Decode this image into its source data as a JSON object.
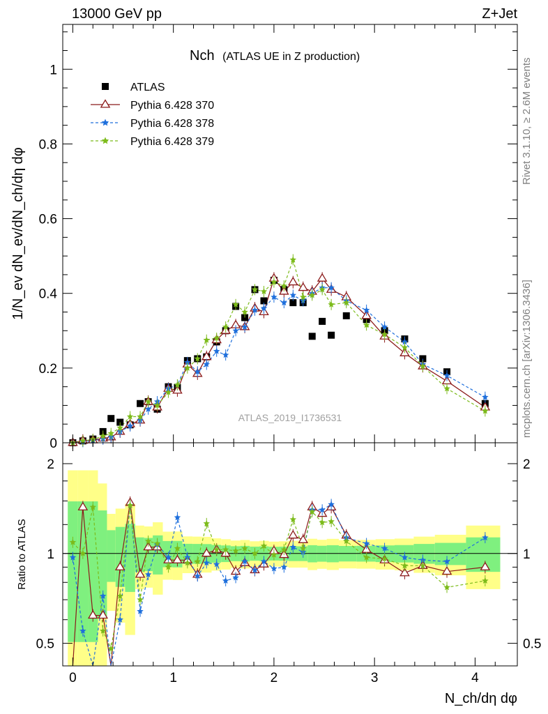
{
  "header": {
    "left": "13000 GeV pp",
    "right": "Z+Jet"
  },
  "main_title": {
    "text": "Nch",
    "sub": "(ATLAS UE in Z production)"
  },
  "watermarks": {
    "analysis": "ATLAS_2019_I1736531",
    "rivet": "Rivet 3.1.10, ≥ 2.6M events",
    "mcplots": "mcplots.cern.ch [arXiv:1306.3436]"
  },
  "labels": {
    "ylabel_main": "1/N_ev dN_ev/dN_ch/dη dφ",
    "ylabel_ratio": "Ratio to ATLAS",
    "xlabel": "N_ch/dη dφ"
  },
  "legend": [
    {
      "label": "ATLAS",
      "color": "#000000",
      "style": "square"
    },
    {
      "label": "Pythia 6.428 370",
      "color": "#8b1a1a",
      "style": "triangle-solid"
    },
    {
      "label": "Pythia 6.428 378",
      "color": "#1e6fdc",
      "style": "star-dashed"
    },
    {
      "label": "Pythia 6.428 379",
      "color": "#7cbb1a",
      "style": "star-dashed"
    }
  ],
  "chart_data": [
    {
      "type": "scatter",
      "panel": "main",
      "xlim": [
        -0.1,
        4.42
      ],
      "ylim": [
        0,
        1.12
      ],
      "xticks": [
        0,
        1,
        2,
        3,
        4
      ],
      "yticks": [
        0,
        0.2,
        0.4,
        0.6,
        0.8,
        1
      ],
      "ytick_labels": [
        "0",
        "0.2",
        "0.4",
        "0.6",
        "0.8",
        "1"
      ],
      "legend_position": "top-left",
      "series": [
        {
          "name": "ATLAS",
          "color": "#000000",
          "points": [
            [
              0,
              0
            ],
            [
              0.1,
              0.005
            ],
            [
              0.2,
              0.01
            ],
            [
              0.3,
              0.03
            ],
            [
              0.38,
              0.065
            ],
            [
              0.47,
              0.055
            ],
            [
              0.57,
              0.048
            ],
            [
              0.67,
              0.105
            ],
            [
              0.75,
              0.11
            ],
            [
              0.84,
              0.09
            ],
            [
              0.95,
              0.15
            ],
            [
              1.04,
              0.148
            ],
            [
              1.14,
              0.22
            ],
            [
              1.24,
              0.225
            ],
            [
              1.33,
              0.23
            ],
            [
              1.43,
              0.27
            ],
            [
              1.52,
              0.3
            ],
            [
              1.62,
              0.365
            ],
            [
              1.71,
              0.335
            ],
            [
              1.81,
              0.41
            ],
            [
              1.9,
              0.38
            ],
            [
              2.0,
              0.435
            ],
            [
              2.1,
              0.41
            ],
            [
              2.19,
              0.375
            ],
            [
              2.29,
              0.375
            ],
            [
              2.38,
              0.285
            ],
            [
              2.48,
              0.325
            ],
            [
              2.57,
              0.288
            ],
            [
              2.72,
              0.34
            ],
            [
              2.92,
              0.33
            ],
            [
              3.1,
              0.3
            ],
            [
              3.3,
              0.278
            ],
            [
              3.48,
              0.225
            ],
            [
              3.72,
              0.19
            ],
            [
              4.1,
              0.105
            ]
          ]
        },
        {
          "name": "Pythia 6.428 370",
          "color": "#8b1a1a",
          "points": [
            [
              0,
              0
            ],
            [
              0.1,
              0.006
            ],
            [
              0.2,
              0.007
            ],
            [
              0.3,
              0.012
            ],
            [
              0.38,
              0.015
            ],
            [
              0.47,
              0.03
            ],
            [
              0.57,
              0.05
            ],
            [
              0.67,
              0.06
            ],
            [
              0.75,
              0.11
            ],
            [
              0.84,
              0.095
            ],
            [
              0.95,
              0.145
            ],
            [
              1.04,
              0.14
            ],
            [
              1.14,
              0.21
            ],
            [
              1.24,
              0.185
            ],
            [
              1.33,
              0.23
            ],
            [
              1.43,
              0.275
            ],
            [
              1.52,
              0.3
            ],
            [
              1.62,
              0.315
            ],
            [
              1.71,
              0.31
            ],
            [
              1.81,
              0.36
            ],
            [
              1.9,
              0.35
            ],
            [
              2.0,
              0.44
            ],
            [
              2.1,
              0.405
            ],
            [
              2.19,
              0.43
            ],
            [
              2.29,
              0.415
            ],
            [
              2.38,
              0.405
            ],
            [
              2.48,
              0.44
            ],
            [
              2.57,
              0.41
            ],
            [
              2.72,
              0.39
            ],
            [
              2.92,
              0.34
            ],
            [
              3.1,
              0.285
            ],
            [
              3.3,
              0.24
            ],
            [
              3.48,
              0.205
            ],
            [
              3.72,
              0.165
            ],
            [
              4.1,
              0.095
            ]
          ]
        },
        {
          "name": "Pythia 6.428 378",
          "color": "#1e6fdc",
          "points": [
            [
              0,
              0
            ],
            [
              0.1,
              0.003
            ],
            [
              0.2,
              0.005
            ],
            [
              0.3,
              0.01
            ],
            [
              0.38,
              0.015
            ],
            [
              0.47,
              0.03
            ],
            [
              0.57,
              0.045
            ],
            [
              0.67,
              0.06
            ],
            [
              0.75,
              0.09
            ],
            [
              0.84,
              0.11
            ],
            [
              0.95,
              0.145
            ],
            [
              1.04,
              0.155
            ],
            [
              1.14,
              0.215
            ],
            [
              1.24,
              0.19
            ],
            [
              1.33,
              0.21
            ],
            [
              1.43,
              0.245
            ],
            [
              1.52,
              0.235
            ],
            [
              1.62,
              0.3
            ],
            [
              1.71,
              0.31
            ],
            [
              1.81,
              0.355
            ],
            [
              1.9,
              0.36
            ],
            [
              2.0,
              0.39
            ],
            [
              2.1,
              0.375
            ],
            [
              2.19,
              0.395
            ],
            [
              2.29,
              0.38
            ],
            [
              2.38,
              0.4
            ],
            [
              2.48,
              0.415
            ],
            [
              2.57,
              0.415
            ],
            [
              2.72,
              0.38
            ],
            [
              2.92,
              0.355
            ],
            [
              3.1,
              0.31
            ],
            [
              3.3,
              0.27
            ],
            [
              3.48,
              0.21
            ],
            [
              3.72,
              0.18
            ],
            [
              4.1,
              0.122
            ]
          ]
        },
        {
          "name": "Pythia 6.428 379",
          "color": "#7cbb1a",
          "points": [
            [
              0,
              0
            ],
            [
              0.1,
              0.005
            ],
            [
              0.2,
              0.009
            ],
            [
              0.3,
              0.018
            ],
            [
              0.38,
              0.025
            ],
            [
              0.47,
              0.04
            ],
            [
              0.57,
              0.07
            ],
            [
              0.67,
              0.07
            ],
            [
              0.75,
              0.11
            ],
            [
              0.84,
              0.1
            ],
            [
              0.95,
              0.135
            ],
            [
              1.04,
              0.155
            ],
            [
              1.14,
              0.2
            ],
            [
              1.24,
              0.225
            ],
            [
              1.33,
              0.275
            ],
            [
              1.43,
              0.28
            ],
            [
              1.52,
              0.31
            ],
            [
              1.62,
              0.37
            ],
            [
              1.71,
              0.35
            ],
            [
              1.81,
              0.41
            ],
            [
              1.9,
              0.405
            ],
            [
              2.0,
              0.43
            ],
            [
              2.1,
              0.42
            ],
            [
              2.19,
              0.49
            ],
            [
              2.29,
              0.39
            ],
            [
              2.38,
              0.395
            ],
            [
              2.48,
              0.41
            ],
            [
              2.57,
              0.37
            ],
            [
              2.72,
              0.375
            ],
            [
              2.92,
              0.315
            ],
            [
              3.1,
              0.29
            ],
            [
              3.3,
              0.255
            ],
            [
              3.48,
              0.205
            ],
            [
              3.72,
              0.145
            ],
            [
              4.1,
              0.085
            ]
          ]
        }
      ]
    },
    {
      "type": "line",
      "panel": "ratio",
      "xlim": [
        -0.1,
        4.42
      ],
      "ylim": [
        0.42,
        2.35
      ],
      "log_y": true,
      "yticks": [
        0.5,
        1,
        2
      ],
      "ytick_labels": [
        "0.5",
        "1",
        "2"
      ],
      "reference_line": 1,
      "bands": [
        {
          "name": "stat",
          "color": "#7ff07f"
        },
        {
          "name": "total",
          "color": "#ffff88"
        }
      ],
      "series": [
        {
          "name": "Pythia 6.428 370",
          "color": "#8b1a1a",
          "points": [
            [
              0,
              0.1
            ],
            [
              0.1,
              1.43
            ],
            [
              0.2,
              0.62
            ],
            [
              0.3,
              0.62
            ],
            [
              0.38,
              0.3
            ],
            [
              0.47,
              0.9
            ],
            [
              0.57,
              1.48
            ],
            [
              0.67,
              0.85
            ],
            [
              0.75,
              1.05
            ],
            [
              0.84,
              1.05
            ],
            [
              0.95,
              0.95
            ],
            [
              1.04,
              0.95
            ],
            [
              1.14,
              0.95
            ],
            [
              1.24,
              0.85
            ],
            [
              1.33,
              1.0
            ],
            [
              1.43,
              1.03
            ],
            [
              1.52,
              1.0
            ],
            [
              1.62,
              0.87
            ],
            [
              1.71,
              0.93
            ],
            [
              1.81,
              0.88
            ],
            [
              1.9,
              0.92
            ],
            [
              2.0,
              1.02
            ],
            [
              2.1,
              0.99
            ],
            [
              2.19,
              1.15
            ],
            [
              2.29,
              1.11
            ],
            [
              2.38,
              1.43
            ],
            [
              2.48,
              1.36
            ],
            [
              2.57,
              1.43
            ],
            [
              2.72,
              1.15
            ],
            [
              2.92,
              1.03
            ],
            [
              3.1,
              0.95
            ],
            [
              3.3,
              0.86
            ],
            [
              3.48,
              0.91
            ],
            [
              3.72,
              0.87
            ],
            [
              4.1,
              0.9
            ]
          ]
        },
        {
          "name": "Pythia 6.428 378",
          "color": "#1e6fdc",
          "points": [
            [
              0,
              0.97
            ],
            [
              0.1,
              0.55
            ],
            [
              0.2,
              0.38
            ],
            [
              0.3,
              0.72
            ],
            [
              0.38,
              0.3
            ],
            [
              0.47,
              0.6
            ],
            [
              0.57,
              1.45
            ],
            [
              0.67,
              0.64
            ],
            [
              0.75,
              0.85
            ],
            [
              0.84,
              1.07
            ],
            [
              0.95,
              0.97
            ],
            [
              1.04,
              1.32
            ],
            [
              1.14,
              0.97
            ],
            [
              1.24,
              0.84
            ],
            [
              1.33,
              0.93
            ],
            [
              1.43,
              0.92
            ],
            [
              1.52,
              0.81
            ],
            [
              1.62,
              0.83
            ],
            [
              1.71,
              0.94
            ],
            [
              1.81,
              0.88
            ],
            [
              1.9,
              0.94
            ],
            [
              2.0,
              0.89
            ],
            [
              2.1,
              0.9
            ],
            [
              2.19,
              1.05
            ],
            [
              2.29,
              1.01
            ],
            [
              2.38,
              1.4
            ],
            [
              2.48,
              1.4
            ],
            [
              2.57,
              1.46
            ],
            [
              2.72,
              1.13
            ],
            [
              2.92,
              1.08
            ],
            [
              3.1,
              1.04
            ],
            [
              3.3,
              0.97
            ],
            [
              3.48,
              0.95
            ],
            [
              3.72,
              0.94
            ],
            [
              4.1,
              1.13
            ]
          ]
        },
        {
          "name": "Pythia 6.428 379",
          "color": "#7cbb1a",
          "points": [
            [
              0,
              1.09
            ],
            [
              0.1,
              1.0
            ],
            [
              0.2,
              1.43
            ],
            [
              0.3,
              0.55
            ],
            [
              0.38,
              0.48
            ],
            [
              0.47,
              0.72
            ],
            [
              0.57,
              1.45
            ],
            [
              0.67,
              0.7
            ],
            [
              0.75,
              1.1
            ],
            [
              0.84,
              1.08
            ],
            [
              0.95,
              0.9
            ],
            [
              1.04,
              1.04
            ],
            [
              1.14,
              0.93
            ],
            [
              1.24,
              0.94
            ],
            [
              1.33,
              1.26
            ],
            [
              1.43,
              1.03
            ],
            [
              1.52,
              1.03
            ],
            [
              1.62,
              1.02
            ],
            [
              1.71,
              1.04
            ],
            [
              1.81,
              1.0
            ],
            [
              1.9,
              1.06
            ],
            [
              2.0,
              0.99
            ],
            [
              2.1,
              1.03
            ],
            [
              2.19,
              1.3
            ],
            [
              2.29,
              1.04
            ],
            [
              2.38,
              1.38
            ],
            [
              2.48,
              1.27
            ],
            [
              2.57,
              1.28
            ],
            [
              2.72,
              1.1
            ],
            [
              2.92,
              0.97
            ],
            [
              3.1,
              0.96
            ],
            [
              3.3,
              0.91
            ],
            [
              3.48,
              0.91
            ],
            [
              3.72,
              0.77
            ],
            [
              4.1,
              0.81
            ]
          ]
        }
      ]
    }
  ]
}
